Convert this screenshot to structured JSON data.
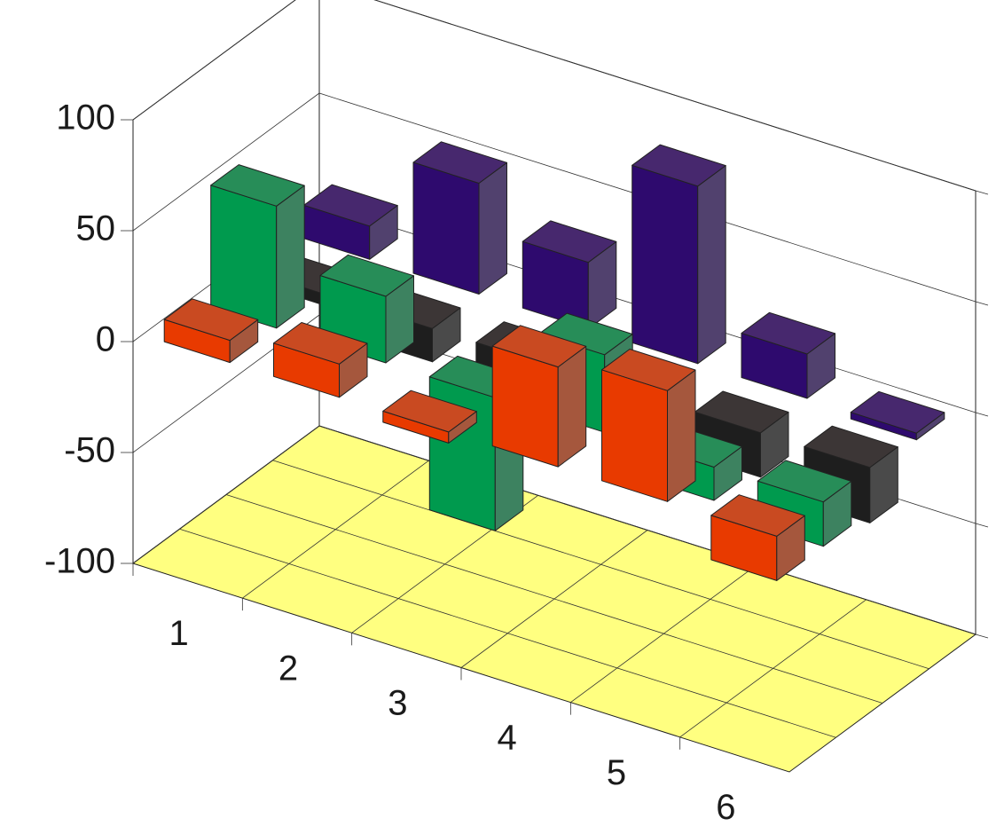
{
  "chart_data": {
    "type": "bar3d",
    "categories": [
      "1",
      "2",
      "3",
      "4",
      "5",
      "6"
    ],
    "series": [
      {
        "color": "#e83a00",
        "values": [
          10,
          15,
          -5,
          45,
          50,
          -20
        ]
      },
      {
        "color": "#009a4e",
        "values": [
          55,
          30,
          -60,
          35,
          -15,
          -20
        ]
      },
      {
        "color": "#1e1e1e",
        "values": [
          -5,
          -15,
          -10,
          -5,
          -20,
          -25
        ]
      },
      {
        "color": "#2e0a6e",
        "values": [
          15,
          50,
          30,
          80,
          20,
          -3
        ]
      }
    ],
    "ylim": [
      -100,
      100
    ],
    "yticks": [
      -100,
      -50,
      0,
      50,
      100
    ],
    "floor_color": "#ffff80",
    "grid": true
  }
}
